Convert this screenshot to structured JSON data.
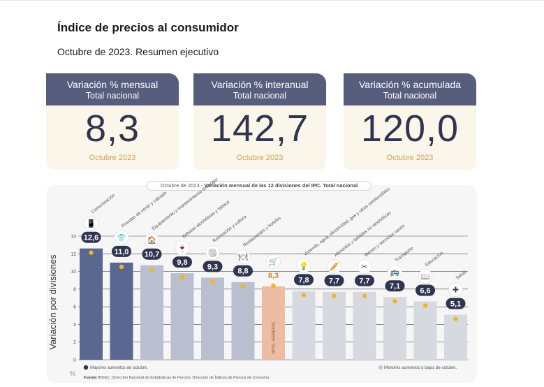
{
  "header": {
    "title": "Índice de precios al consumidor",
    "subtitle": "Octubre de 2023. Resumen ejecutivo"
  },
  "cards": [
    {
      "label": "Variación % mensual",
      "sublabel": "Total nacional",
      "value": "8,3",
      "date": "Octubre 2023"
    },
    {
      "label": "Variación % interanual",
      "sublabel": "Total nacional",
      "value": "142,7",
      "date": "Octubre 2023"
    },
    {
      "label": "Variación % acumulada",
      "sublabel": "Total nacional",
      "value": "120,0",
      "date": "Octubre 2023"
    }
  ],
  "chart_caption": {
    "prefix": "Octubre de 2023 - ",
    "text": "Variación mensual de las 12 divisiones del IPC. Total nacional"
  },
  "chart_data": {
    "type": "bar",
    "title": "Octubre de 2023 - Variación mensual de las 12 divisiones del IPC. Total nacional",
    "ylabel": "Variación por divisiones",
    "yunit": "%",
    "ylim": [
      0,
      14
    ],
    "yticks": [
      0,
      2,
      4,
      6,
      8,
      10,
      12,
      14
    ],
    "categories": [
      "Comunicación",
      "Prendas de vestir y calzado",
      "Equipamiento y mantenimiento del hogar",
      "Bebidas alcohólicas y tabaco",
      "Recreación y cultura",
      "Restaurantes y hoteles",
      "NIVEL GENERAL",
      "Vivienda, agua, electricidad, gas y otros combustibles",
      "Alimentos y bebidas no alcohólicas",
      "Bienes y servicios varios",
      "Transporte",
      "Educación",
      "Salud"
    ],
    "values": [
      12.6,
      11.0,
      10.7,
      9.8,
      9.3,
      8.8,
      8.3,
      7.8,
      7.7,
      7.7,
      7.1,
      6.6,
      5.1
    ],
    "value_labels": [
      "12,6",
      "11,0",
      "10,7",
      "9,8",
      "9,3",
      "8,8",
      "8,3",
      "7,8",
      "7,7",
      "7,7",
      "7,1",
      "6,6",
      "5,1"
    ],
    "groups": [
      "mayor",
      "mayor",
      "mayor",
      "mayor",
      "mayor",
      "mayor",
      "general",
      "menor",
      "menor",
      "menor",
      "menor",
      "menor",
      "menor"
    ],
    "general_label": "NIVEL GENERAL",
    "legend": {
      "mayor": "Mayores aumentos de octubre.",
      "menor": "Menores aumentos o bajas de octubre."
    },
    "colors": {
      "mayor_top": "#5a6791",
      "mayor": "#b9bfcf",
      "general": "#eebba3",
      "menor": "#d6d9df",
      "bubble": "#2f3450",
      "bubble_general": "#ea7f34",
      "marker": "#f2b522",
      "gridline": "#444444"
    },
    "source_label": "Fuente:",
    "source": "INDEC. Dirección Nacional de Estadísticas de Precios. Dirección de Índices de Precios de Consumo."
  }
}
